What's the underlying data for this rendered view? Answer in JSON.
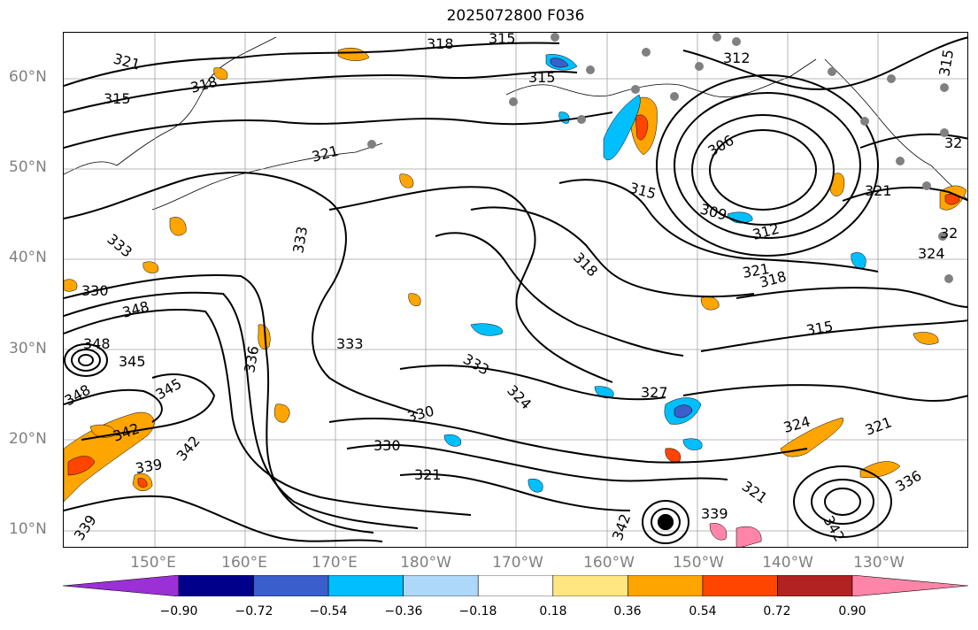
{
  "title": "2025072800 F036",
  "lat_labels": [
    "60°N",
    "50°N",
    "40°N",
    "30°N",
    "20°N",
    "10°N"
  ],
  "lon_labels": [
    "150°E",
    "160°E",
    "170°E",
    "180°W",
    "170°W",
    "160°W",
    "150°W",
    "140°W",
    "130°W"
  ],
  "colorbar": {
    "ticks": [
      "−0.90",
      "−0.72",
      "−0.54",
      "−0.36",
      "−0.18",
      "0.18",
      "0.36",
      "0.54",
      "0.72",
      "0.90"
    ],
    "colors": [
      "#9b30d6",
      "#00008b",
      "#3a5fcd",
      "#00bfff",
      "#add8f9",
      "#ffffff",
      "#ffe680",
      "#ffa500",
      "#ff4500",
      "#b22222",
      "#ff85a8"
    ]
  },
  "contour_labels": [
    "321",
    "318",
    "315",
    "315",
    "312",
    "318",
    "315",
    "306",
    "309",
    "312",
    "315",
    "321",
    "321",
    "333",
    "330",
    "348",
    "348",
    "345",
    "348",
    "345",
    "342",
    "339",
    "342",
    "336",
    "333",
    "333",
    "327",
    "324",
    "330",
    "330",
    "324",
    "321",
    "321",
    "342",
    "339",
    "321",
    "336",
    "342",
    "318",
    "321",
    "318",
    "315",
    "324",
    "339",
    "333",
    "32",
    "32",
    "315"
  ],
  "colors": {
    "contour": "#000000",
    "grid": "#a0a0a0",
    "positive_light": "#ffe680",
    "positive_mid": "#ffa500",
    "positive_strong": "#ff4500",
    "negative_light": "#add8f9",
    "negative_mid": "#00bfff",
    "negative_strong": "#3a5fcd",
    "station": "#808080"
  }
}
